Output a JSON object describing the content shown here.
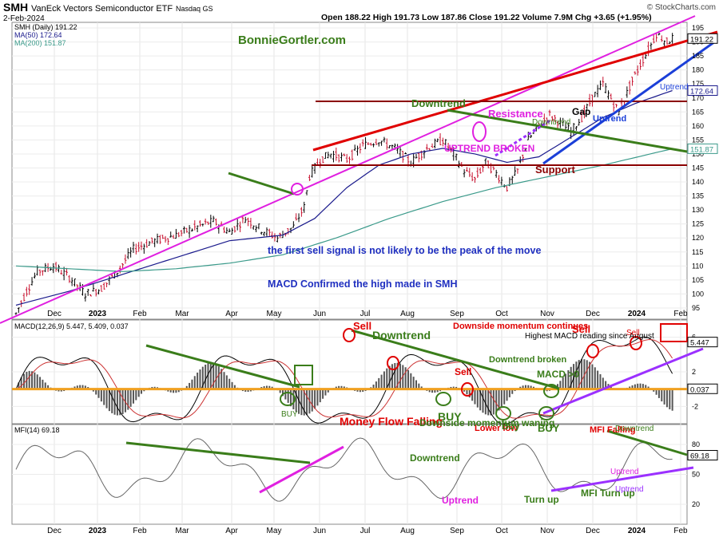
{
  "header": {
    "symbol": "SMH",
    "name": "VanEck Vectors Semiconductor ETF",
    "exchange": "Nasdaq GS",
    "date": "2-Feb-2024",
    "ohlc_line": "Open 188.22  High 191.73  Low 187.86  Close 191.22  Volume 7.9M  Chg +3.65 (+1.95%)",
    "brand": "© StockCharts.com"
  },
  "legend": {
    "price": "SMH (Daily) 191.22",
    "ma50": "MA(50) 172.64",
    "ma200": "MA(200) 151.87",
    "macd": "MACD(12,26,9) 5.447, 5.409, 0.037",
    "mfi": "MFI(14) 69.18"
  },
  "chart_data": [
    {
      "type": "line",
      "panel": "price",
      "x_ticks": [
        "Dec",
        "2023",
        "Feb",
        "Mar",
        "Apr",
        "May",
        "Jun",
        "Jul",
        "Aug",
        "Sep",
        "Oct",
        "Nov",
        "Dec",
        "2024",
        "Feb"
      ],
      "y_ticks": [
        95,
        100,
        105,
        110,
        115,
        120,
        125,
        130,
        135,
        140,
        145,
        150,
        155,
        160,
        165,
        170,
        175,
        180,
        185,
        190,
        195
      ],
      "ylim": [
        91,
        197
      ],
      "series": [
        {
          "name": "SMH (Daily)",
          "color": "#000000",
          "values": [
            [
              0,
              93
            ],
            [
              4,
              101
            ],
            [
              8,
              108
            ],
            [
              14,
              110
            ],
            [
              20,
              106
            ],
            [
              26,
              100
            ],
            [
              32,
              102
            ],
            [
              38,
              108
            ],
            [
              44,
              116
            ],
            [
              52,
              119
            ],
            [
              60,
              121
            ],
            [
              68,
              124
            ],
            [
              74,
              126
            ],
            [
              80,
              122
            ],
            [
              86,
              127
            ],
            [
              92,
              123
            ],
            [
              98,
              120
            ],
            [
              104,
              124
            ],
            [
              108,
              131
            ],
            [
              110,
              142
            ],
            [
              114,
              148
            ],
            [
              118,
              150
            ],
            [
              124,
              148
            ],
            [
              130,
              153
            ],
            [
              136,
              155
            ],
            [
              142,
              152
            ],
            [
              148,
              147
            ],
            [
              154,
              152
            ],
            [
              160,
              155
            ],
            [
              164,
              150
            ],
            [
              168,
              144
            ],
            [
              172,
              141
            ],
            [
              176,
              147
            ],
            [
              180,
              143
            ],
            [
              184,
              138
            ],
            [
              188,
              144
            ],
            [
              192,
              155
            ],
            [
              196,
              160
            ],
            [
              200,
              164
            ],
            [
              204,
              161
            ],
            [
              208,
              158
            ],
            [
              212,
              163
            ],
            [
              216,
              170
            ],
            [
              220,
              175
            ],
            [
              224,
              168
            ],
            [
              226,
              165
            ],
            [
              230,
              174
            ],
            [
              234,
              182
            ],
            [
              238,
              189
            ],
            [
              240,
              193
            ],
            [
              244,
              190
            ],
            [
              246,
              191.22
            ]
          ]
        },
        {
          "name": "MA(50)",
          "color": "#1a1a8c",
          "values": [
            [
              0,
              96
            ],
            [
              20,
              101
            ],
            [
              40,
              107
            ],
            [
              60,
              113
            ],
            [
              80,
              119
            ],
            [
              100,
              121
            ],
            [
              112,
              127
            ],
            [
              124,
              138
            ],
            [
              136,
              146
            ],
            [
              148,
              150
            ],
            [
              160,
              152
            ],
            [
              172,
              150
            ],
            [
              184,
              147
            ],
            [
              196,
              149
            ],
            [
              208,
              156
            ],
            [
              220,
              163
            ],
            [
              232,
              168
            ],
            [
              246,
              172.64
            ]
          ]
        },
        {
          "name": "MA(200)",
          "color": "#3a9a8a",
          "values": [
            [
              0,
              110
            ],
            [
              20,
              109
            ],
            [
              40,
              108
            ],
            [
              60,
              109
            ],
            [
              80,
              111
            ],
            [
              100,
              114
            ],
            [
              120,
              120
            ],
            [
              140,
              127
            ],
            [
              160,
              133
            ],
            [
              180,
              138
            ],
            [
              200,
              142
            ],
            [
              220,
              146
            ],
            [
              246,
              151.87
            ]
          ]
        }
      ],
      "annotations": [
        "BonnieGortler.com",
        "Downtrend",
        "Resistance",
        "Downtrend",
        "Gap",
        "Uptrend",
        "Uptrend",
        "UPTREND BROKEN",
        "Support",
        "the first sell signal is not likely to be the peak of the move",
        "MACD Confirmed the high made in SMH"
      ],
      "value_tags": [
        "191.22",
        "172.64",
        "151.87"
      ]
    },
    {
      "type": "line",
      "panel": "macd",
      "y_ticks": [
        -2,
        2,
        6
      ],
      "ylim": [
        -4,
        8
      ],
      "series": [
        {
          "name": "MACD",
          "color": "#000000"
        },
        {
          "name": "Signal",
          "color": "#cc3333"
        },
        {
          "name": "Histogram",
          "color": "#555555"
        }
      ],
      "annotations": [
        "BUY",
        "Sell",
        "Downtrend",
        "Downside momentum continues",
        "Sell",
        "Downtrend broken",
        "BUY",
        "Lower low",
        "Buy",
        "MACD >0",
        "BUY",
        "Highest MACD reading since August",
        "Sell",
        "Sell"
      ],
      "value_tags": [
        "5.447",
        "0.037"
      ]
    },
    {
      "type": "line",
      "panel": "mfi",
      "y_ticks": [
        20,
        50,
        80
      ],
      "ylim": [
        0,
        100
      ],
      "series": [
        {
          "name": "MFI(14)",
          "color": "#666666"
        }
      ],
      "annotations": [
        "Money Flow Falling",
        "Downside momentum waning",
        "Downtrend",
        "Uptrend",
        "Turn up",
        "MFI Turn up",
        "MFI Falling",
        "Downtrend",
        "Uptrend",
        "Uptrend"
      ],
      "value_tags": [
        "69.18"
      ]
    }
  ]
}
